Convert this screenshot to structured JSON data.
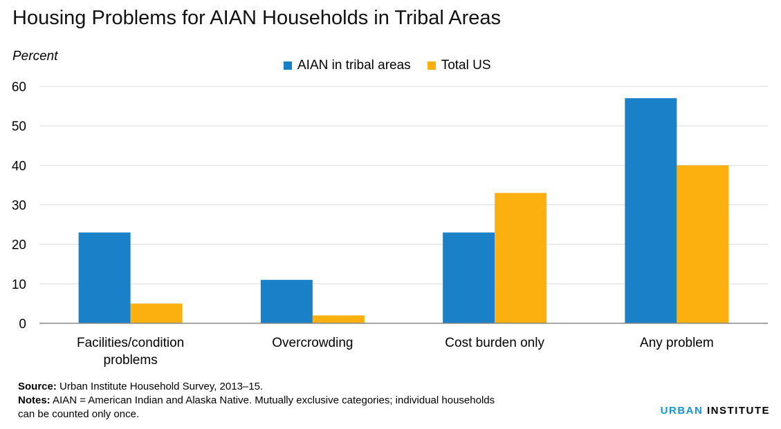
{
  "chart_data": {
    "type": "bar",
    "title": "Housing Problems for AIAN Households in Tribal Areas",
    "ylabel": "Percent",
    "xlabel": "",
    "categories": [
      [
        "Facilities/condition",
        "problems"
      ],
      [
        "Overcrowding"
      ],
      [
        "Cost burden only"
      ],
      [
        "Any problem"
      ]
    ],
    "series": [
      {
        "name": "AIAN in tribal areas",
        "color": "#1a80c8",
        "values": [
          23,
          11,
          23,
          57
        ]
      },
      {
        "name": "Total US",
        "color": "#fbb010",
        "values": [
          5,
          2,
          33,
          40
        ]
      }
    ],
    "ylim": [
      0,
      60
    ],
    "yticks": [
      0,
      10,
      20,
      30,
      40,
      50,
      60
    ],
    "grid": true,
    "legend": "top-center"
  },
  "footer": {
    "source_label": "Source:",
    "source_text": " Urban Institute Household Survey, 2013–15.",
    "notes_label": "Notes:",
    "notes_text": " AIAN = American Indian and Alaska Native. Mutually exclusive categories; individual households can be counted only once."
  },
  "logo": {
    "part1": "URBAN",
    "part2": " INSTITUTE",
    "color1": "#1696d2"
  }
}
